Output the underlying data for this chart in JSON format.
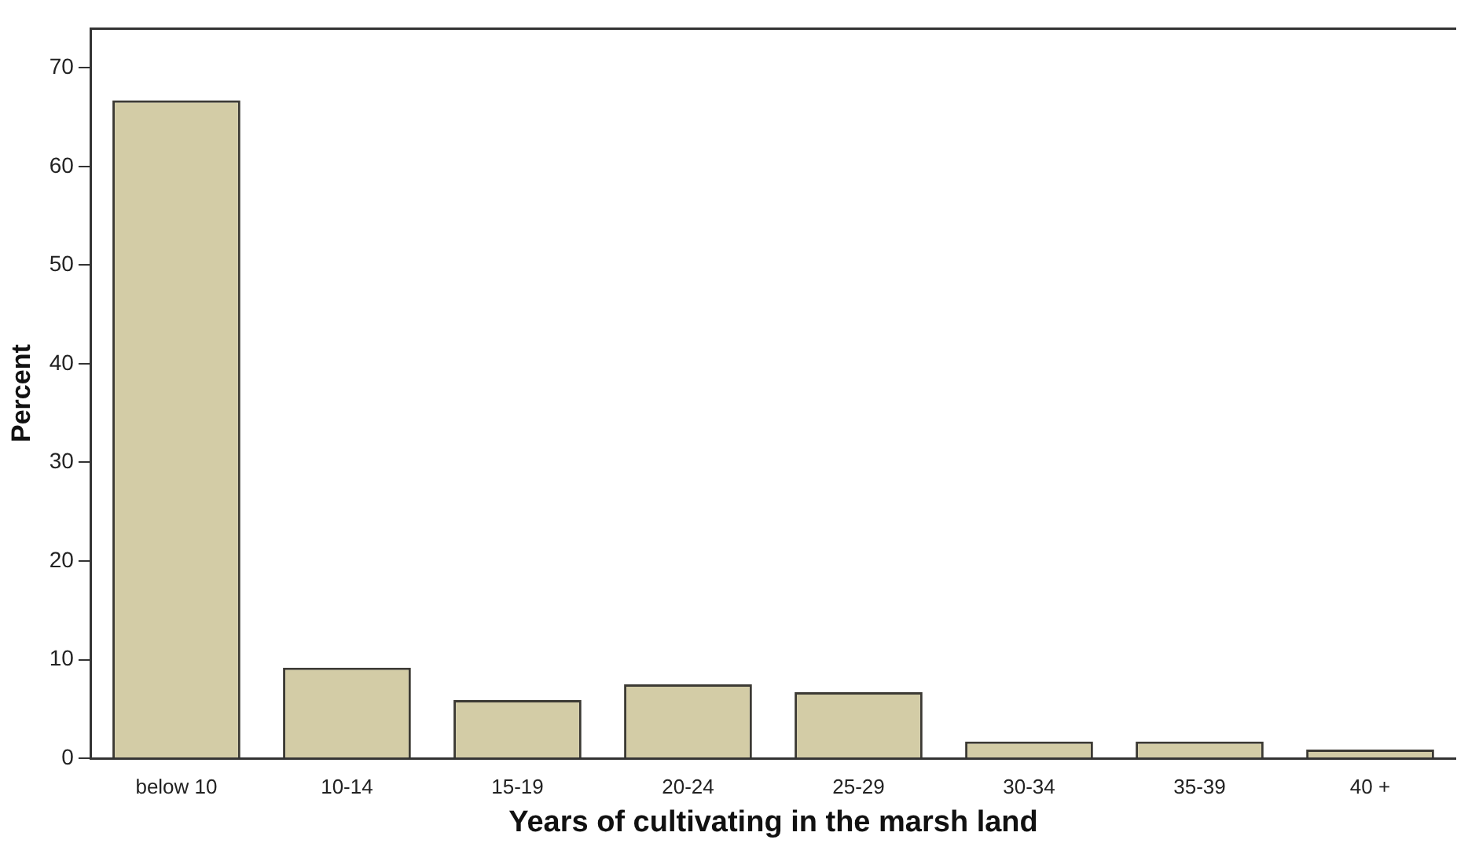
{
  "chart_data": {
    "type": "bar",
    "xlabel": "Years of cultivating in the marsh land",
    "ylabel": "Percent",
    "categories": [
      "below 10",
      "10-14",
      "15-19",
      "20-24",
      "25-29",
      "30-34",
      "35-39",
      "40 +"
    ],
    "values": [
      66.7,
      9.2,
      5.9,
      7.5,
      6.7,
      1.7,
      1.7,
      0.9
    ],
    "color": "#d3cca6",
    "ylim": [
      0,
      74
    ],
    "yticks": [
      0,
      10,
      20,
      30,
      40,
      50,
      60,
      70
    ],
    "grid": false,
    "legend": false
  }
}
